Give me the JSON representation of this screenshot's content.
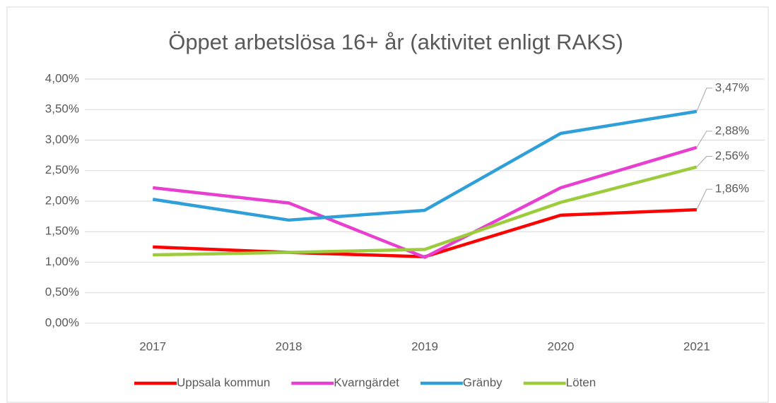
{
  "chart_data": {
    "type": "line",
    "title": "Öppet arbetslösa 16+ år (aktivitet enligt RAKS)",
    "categories": [
      "2017",
      "2018",
      "2019",
      "2020",
      "2021"
    ],
    "series": [
      {
        "name": "Uppsala kommun",
        "color": "#ff0000",
        "values": [
          1.25,
          1.16,
          1.09,
          1.77,
          1.86
        ],
        "value_labels": [
          null,
          null,
          null,
          null,
          "1,86%"
        ]
      },
      {
        "name": "Kvarngärdet",
        "color": "#e83fd0",
        "values": [
          2.22,
          1.97,
          1.08,
          2.22,
          2.88
        ],
        "value_labels": [
          null,
          null,
          null,
          null,
          "2,88%"
        ]
      },
      {
        "name": "Gränby",
        "color": "#2e9fd8",
        "values": [
          2.03,
          1.69,
          1.85,
          3.11,
          3.47
        ],
        "value_labels": [
          null,
          null,
          null,
          null,
          "3,47%"
        ]
      },
      {
        "name": "Löten",
        "color": "#9ccc3c",
        "values": [
          1.12,
          1.16,
          1.21,
          1.98,
          2.56
        ],
        "value_labels": [
          null,
          null,
          null,
          null,
          "2,56%"
        ]
      }
    ],
    "ylim": [
      0,
      4
    ],
    "yticks": [
      {
        "value": 0,
        "label": "0,00%"
      },
      {
        "value": 0.5,
        "label": "0,50%"
      },
      {
        "value": 1,
        "label": "1,00%"
      },
      {
        "value": 1.5,
        "label": "1,50%"
      },
      {
        "value": 2,
        "label": "2,00%"
      },
      {
        "value": 2.5,
        "label": "2,50%"
      },
      {
        "value": 3,
        "label": "3,00%"
      },
      {
        "value": 3.5,
        "label": "3,50%"
      },
      {
        "value": 4,
        "label": "4,00%"
      }
    ],
    "grid": true,
    "legend": "bottom"
  }
}
